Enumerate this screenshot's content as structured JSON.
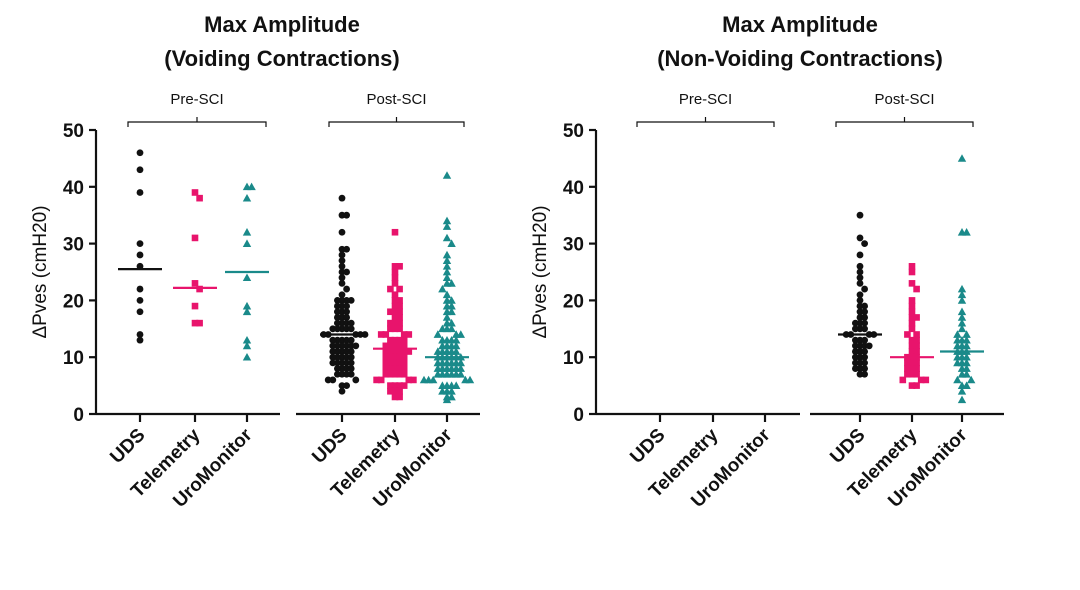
{
  "colors": {
    "uds": "#111111",
    "telemetry": "#e8146c",
    "uromonitor": "#1a8a8a"
  },
  "chart_data": [
    {
      "type": "scatter",
      "title": [
        "Max Amplitude",
        "(Voiding Contractions)"
      ],
      "ylabel": "ΔPves (cmH20)",
      "ylim": [
        0,
        50
      ],
      "yticks": [
        0,
        10,
        20,
        30,
        40,
        50
      ],
      "categories": [
        "UDS",
        "Telemetry",
        "UroMonitor"
      ],
      "panels": [
        {
          "group": "Pre-SCI",
          "series": [
            {
              "category": "UDS",
              "median": 25.5,
              "values": [
                46,
                43,
                39,
                30,
                28,
                26,
                22,
                20,
                18,
                14,
                13
              ]
            },
            {
              "category": "Telemetry",
              "median": 22.2,
              "values": [
                39,
                38,
                31,
                23,
                22,
                19,
                16,
                16
              ]
            },
            {
              "category": "UroMonitor",
              "median": 25,
              "values": [
                40,
                40,
                38,
                32,
                30,
                24,
                19,
                18,
                13,
                12,
                10
              ]
            }
          ]
        },
        {
          "group": "Post-SCI",
          "series": [
            {
              "category": "UDS",
              "median": 14,
              "values": [
                38,
                35,
                35,
                32,
                29,
                29,
                28,
                27,
                26,
                25,
                25,
                24,
                23,
                22,
                21,
                20,
                20,
                20,
                20,
                19,
                19,
                19,
                18,
                18,
                18,
                17,
                17,
                17,
                16,
                16,
                16,
                16,
                15,
                15,
                15,
                15,
                15,
                14,
                14,
                14,
                14,
                14,
                13,
                13,
                13,
                13,
                13,
                12,
                12,
                12,
                12,
                12,
                12,
                11,
                11,
                11,
                11,
                11,
                10,
                10,
                10,
                10,
                10,
                9,
                9,
                9,
                9,
                9,
                8,
                8,
                8,
                8,
                7,
                7,
                7,
                7,
                6,
                6,
                6,
                5,
                5,
                4
              ]
            },
            {
              "category": "Telemetry",
              "median": 11.5,
              "values": [
                32,
                26,
                26,
                25,
                24,
                23,
                22,
                22,
                21,
                20,
                20,
                19,
                19,
                18,
                18,
                18,
                17,
                17,
                16,
                16,
                16,
                15,
                15,
                15,
                14,
                14,
                14,
                14,
                13,
                13,
                13,
                13,
                12,
                12,
                12,
                12,
                12,
                11,
                11,
                11,
                11,
                11,
                11,
                10,
                10,
                10,
                10,
                10,
                9,
                9,
                9,
                9,
                9,
                8,
                8,
                8,
                8,
                8,
                7,
                7,
                7,
                7,
                7,
                6,
                6,
                6,
                6,
                5,
                5,
                5,
                5,
                4,
                4,
                4,
                3,
                3
              ]
            },
            {
              "category": "UroMonitor",
              "median": 10,
              "values": [
                42,
                34,
                33,
                31,
                30,
                28,
                27,
                26,
                25,
                24,
                23,
                23,
                22,
                21,
                20,
                20,
                19,
                19,
                18,
                18,
                17,
                16,
                16,
                15,
                15,
                15,
                14,
                14,
                14,
                13,
                13,
                13,
                13,
                12,
                12,
                12,
                12,
                11,
                11,
                11,
                11,
                11,
                10,
                10,
                10,
                10,
                10,
                10,
                9,
                9,
                9,
                9,
                9,
                9,
                8,
                8,
                8,
                8,
                8,
                8,
                7,
                7,
                7,
                7,
                7,
                7,
                6,
                6,
                6,
                6,
                6,
                5,
                5,
                5,
                5,
                4,
                4,
                4,
                3,
                3,
                2.5
              ]
            }
          ]
        }
      ]
    },
    {
      "type": "scatter",
      "title": [
        "Max Amplitude",
        "(Non-Voiding Contractions)"
      ],
      "ylabel": "ΔPves (cmH20)",
      "ylim": [
        0,
        50
      ],
      "yticks": [
        0,
        10,
        20,
        30,
        40,
        50
      ],
      "categories": [
        "UDS",
        "Telemetry",
        "UroMonitor"
      ],
      "panels": [
        {
          "group": "Pre-SCI",
          "series": [
            {
              "category": "UDS",
              "median": null,
              "values": []
            },
            {
              "category": "Telemetry",
              "median": null,
              "values": []
            },
            {
              "category": "UroMonitor",
              "median": null,
              "values": []
            }
          ]
        },
        {
          "group": "Post-SCI",
          "series": [
            {
              "category": "UDS",
              "median": 14,
              "values": [
                35,
                31,
                30,
                28,
                26,
                25,
                24,
                23,
                22,
                21,
                20,
                19,
                19,
                18,
                18,
                17,
                17,
                16,
                16,
                16,
                15,
                15,
                15,
                14,
                14,
                14,
                14,
                13,
                13,
                13,
                12,
                12,
                12,
                12,
                11,
                11,
                11,
                10,
                10,
                10,
                9,
                9,
                9,
                8,
                8,
                8,
                7,
                7
              ]
            },
            {
              "category": "Telemetry",
              "median": 10,
              "values": [
                26,
                25,
                23,
                22,
                20,
                19,
                18,
                17,
                17,
                16,
                15,
                14,
                14,
                13,
                13,
                12,
                12,
                11,
                11,
                10,
                10,
                10,
                9,
                9,
                9,
                8,
                8,
                8,
                7,
                7,
                7,
                6,
                6,
                6,
                5,
                5
              ]
            },
            {
              "category": "UroMonitor",
              "median": 11,
              "values": [
                45,
                32,
                32,
                22,
                21,
                20,
                18,
                17,
                16,
                15,
                14,
                14,
                13,
                13,
                13,
                12,
                12,
                12,
                11,
                11,
                11,
                10,
                10,
                10,
                9,
                9,
                9,
                8,
                8,
                7,
                7,
                6,
                6,
                5,
                5,
                4,
                2.5
              ]
            }
          ]
        }
      ]
    }
  ]
}
